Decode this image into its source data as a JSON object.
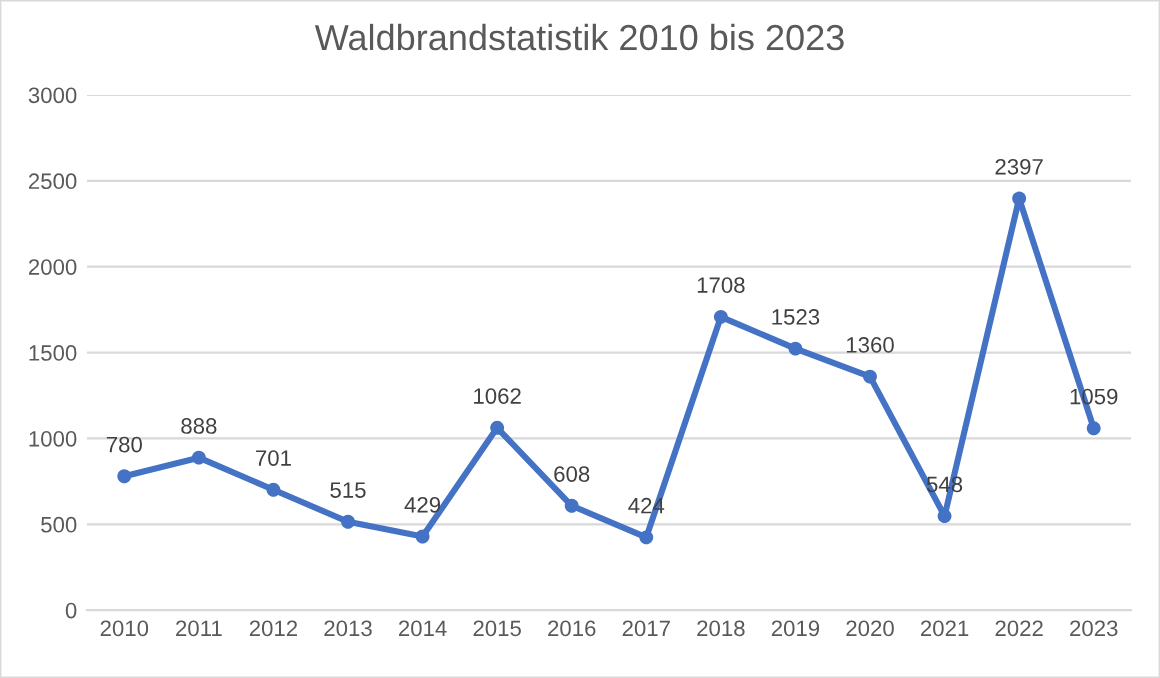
{
  "chart_data": {
    "type": "line",
    "title": "Waldbrandstatistik 2010 bis 2023",
    "categories": [
      "2010",
      "2011",
      "2012",
      "2013",
      "2014",
      "2015",
      "2016",
      "2017",
      "2018",
      "2019",
      "2020",
      "2021",
      "2022",
      "2023"
    ],
    "series": [
      {
        "color": "#4472c4",
        "values": [
          780,
          888,
          701,
          515,
          429,
          1062,
          608,
          424,
          1708,
          1523,
          1360,
          548,
          2397,
          1059
        ]
      }
    ],
    "ylim": [
      0,
      3000
    ],
    "yticks": [
      0,
      500,
      1000,
      1500,
      2000,
      2500,
      3000
    ],
    "grid": "y",
    "legend": false,
    "marker": "circle",
    "line_style": "solid",
    "data_labels": true
  }
}
